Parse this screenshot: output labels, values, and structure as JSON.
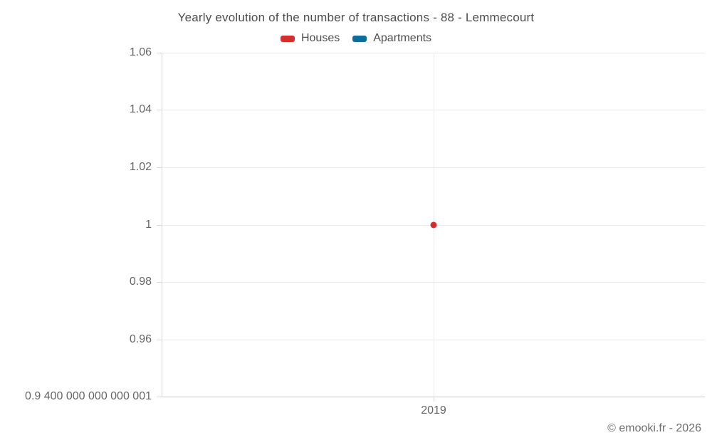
{
  "title": "Yearly evolution of the number of transactions - 88 - Lemmecourt",
  "legend": [
    {
      "label": "Houses",
      "color": "#d32f2f"
    },
    {
      "label": "Apartments",
      "color": "#0e6d9e"
    }
  ],
  "footer": "© emooki.fr - 2026",
  "chart_data": {
    "type": "scatter",
    "title": "Yearly evolution of the number of transactions - 88 - Lemmecourt",
    "xlabel": "",
    "ylabel": "",
    "grid": true,
    "legend_position": "top",
    "ylim": [
      0.94,
      1.06
    ],
    "yticks": [
      {
        "value": 1.06,
        "label": "1.06"
      },
      {
        "value": 1.04,
        "label": "1.04"
      },
      {
        "value": 1.02,
        "label": "1.02"
      },
      {
        "value": 1.0,
        "label": "1"
      },
      {
        "value": 0.98,
        "label": "0.98"
      },
      {
        "value": 0.96,
        "label": "0.96"
      },
      {
        "value": 0.94,
        "label": "0.9 400 000 000 000 001"
      }
    ],
    "xticks": [
      {
        "value": 2019,
        "label": "2019"
      }
    ],
    "series": [
      {
        "name": "Houses",
        "color": "#d32f2f",
        "points": [
          {
            "x": 2019,
            "y": 1
          }
        ]
      },
      {
        "name": "Apartments",
        "color": "#0e6d9e",
        "points": []
      }
    ]
  }
}
